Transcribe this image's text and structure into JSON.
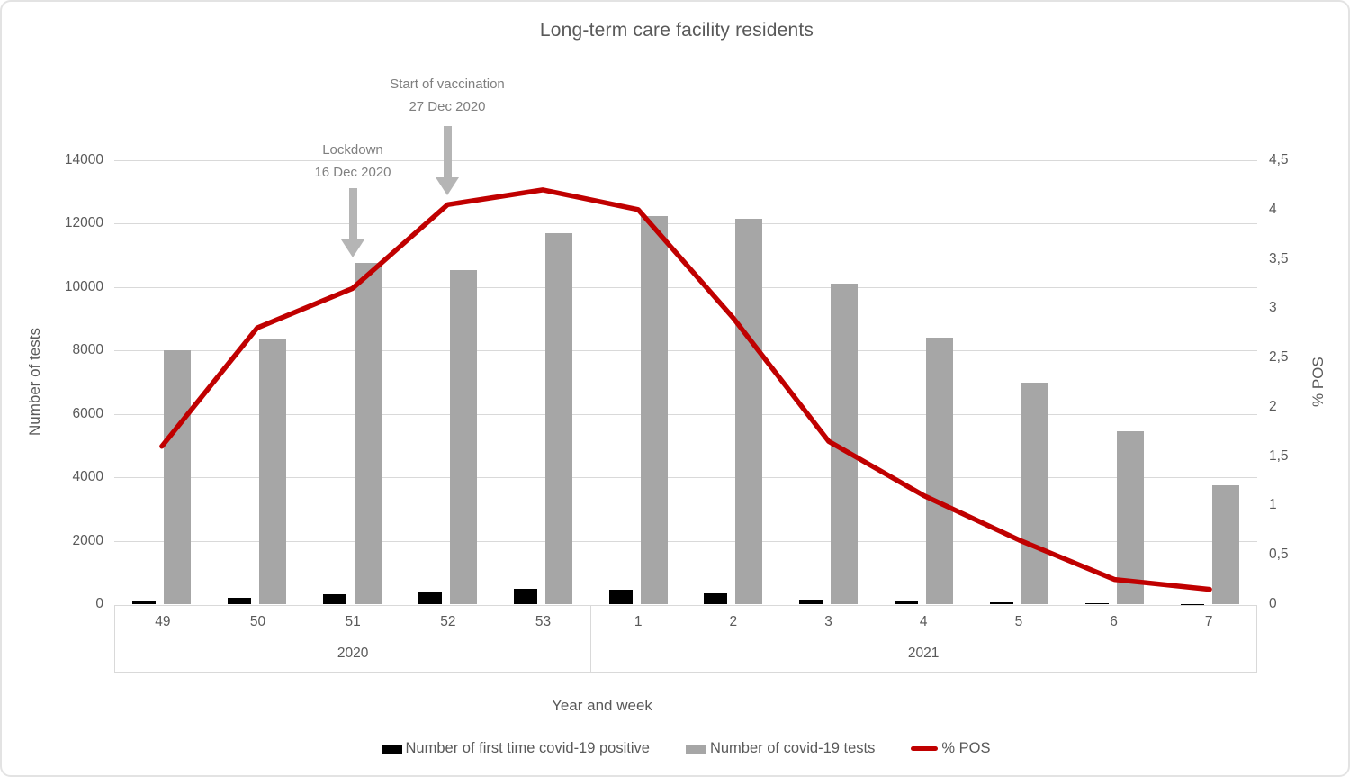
{
  "frame": {
    "title": "Long-term care facility residents"
  },
  "axes": {
    "left": {
      "title": "Number of tests",
      "ticks": [
        "14000",
        "12000",
        "10000",
        "8000",
        "6000",
        "4000",
        "2000",
        "0"
      ],
      "max": 14000
    },
    "right": {
      "title": "% POS",
      "ticks": [
        "4,5",
        "4",
        "3,5",
        "3",
        "2,5",
        "2",
        "1,5",
        "1",
        "0,5",
        "0"
      ],
      "max": 4.5
    },
    "x": {
      "title": "Year and week",
      "groups": [
        {
          "year": "2020",
          "weeks": [
            "49",
            "50",
            "51",
            "52",
            "53"
          ]
        },
        {
          "year": "2021",
          "weeks": [
            "1",
            "2",
            "3",
            "4",
            "5",
            "6",
            "7"
          ]
        }
      ]
    }
  },
  "annotations": {
    "lockdown": {
      "line1": "Lockdown",
      "line2": "16 Dec 2020"
    },
    "vaccination": {
      "line1": "Start of vaccination",
      "line2": "27 Dec 2020"
    }
  },
  "legend": {
    "items": [
      {
        "label": "Number of first time covid-19 positive",
        "swatch": "bar",
        "color": "#000000"
      },
      {
        "label": "Number of covid-19 tests",
        "swatch": "bar",
        "color": "#a6a6a6"
      },
      {
        "label": "% POS",
        "swatch": "line",
        "color": "#c00000"
      }
    ]
  },
  "colors": {
    "positives_bar": "#000000",
    "tests_bar": "#a6a6a6",
    "pos_line": "#c00000",
    "gridline": "#d9d9d9",
    "axis_text": "#595959",
    "annotation_text": "#7f7f7f",
    "arrow": "#b5b5b5"
  },
  "chart_data": {
    "type": "bar",
    "title": "Long-term care facility residents",
    "xlabel": "Year and week",
    "ylabel_left": "Number of tests",
    "ylabel_right": "% POS",
    "ylim_left": [
      0,
      14000
    ],
    "ylim_right": [
      0,
      4.5
    ],
    "grid": true,
    "legend_position": "bottom",
    "categories": [
      "49",
      "50",
      "51",
      "52",
      "53",
      "1",
      "2",
      "3",
      "4",
      "5",
      "6",
      "7"
    ],
    "category_years": [
      "2020",
      "2020",
      "2020",
      "2020",
      "2020",
      "2021",
      "2021",
      "2021",
      "2021",
      "2021",
      "2021",
      "2021"
    ],
    "series": [
      {
        "name": "Number of first time covid-19 positive",
        "type": "bar",
        "axis": "left",
        "color": "#000000",
        "values": [
          110,
          200,
          300,
          410,
          490,
          460,
          340,
          150,
          90,
          45,
          15,
          5
        ]
      },
      {
        "name": "Number of covid-19 tests",
        "type": "bar",
        "axis": "left",
        "color": "#a6a6a6",
        "values": [
          8000,
          8350,
          10750,
          10550,
          11700,
          12250,
          12150,
          10100,
          8400,
          7000,
          5450,
          3750
        ]
      },
      {
        "name": "% POS",
        "type": "line",
        "axis": "right",
        "color": "#c00000",
        "values": [
          1.6,
          2.8,
          3.2,
          4.05,
          4.2,
          4.0,
          2.9,
          1.65,
          1.1,
          0.65,
          0.25,
          0.15
        ]
      }
    ],
    "annotations": [
      {
        "text": "Lockdown\n16 Dec 2020",
        "arrow_points_to_week": "51"
      },
      {
        "text": "Start of vaccination\n27 Dec 2020",
        "arrow_points_to_week": "52"
      }
    ]
  }
}
